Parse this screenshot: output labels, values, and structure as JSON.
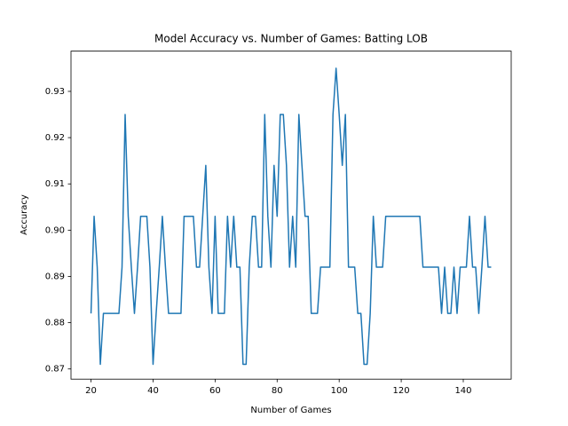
{
  "chart_data": {
    "type": "line",
    "title": "Model Accuracy vs. Number of Games: Batting LOB",
    "xlabel": "Number of Games",
    "ylabel": "Accuracy",
    "x": [
      20,
      21,
      22,
      23,
      24,
      25,
      26,
      27,
      28,
      29,
      30,
      31,
      32,
      33,
      34,
      35,
      36,
      37,
      38,
      39,
      40,
      41,
      42,
      43,
      44,
      45,
      46,
      47,
      48,
      49,
      50,
      51,
      52,
      53,
      54,
      55,
      56,
      57,
      58,
      59,
      60,
      61,
      62,
      63,
      64,
      65,
      66,
      67,
      68,
      69,
      70,
      71,
      72,
      73,
      74,
      75,
      76,
      77,
      78,
      79,
      80,
      81,
      82,
      83,
      84,
      85,
      86,
      87,
      88,
      89,
      90,
      91,
      92,
      93,
      94,
      95,
      96,
      97,
      98,
      99,
      100,
      101,
      102,
      103,
      104,
      105,
      106,
      107,
      108,
      109,
      110,
      111,
      112,
      113,
      114,
      115,
      116,
      117,
      118,
      119,
      120,
      121,
      122,
      123,
      124,
      125,
      126,
      127,
      128,
      129,
      130,
      131,
      132,
      133,
      134,
      135,
      136,
      137,
      138,
      139,
      140,
      141,
      142,
      143,
      144,
      145,
      146,
      147,
      148,
      149
    ],
    "series": [
      {
        "color": "#1f77b4",
        "values": [
          0.882,
          0.903,
          0.892,
          0.871,
          0.882,
          0.882,
          0.882,
          0.882,
          0.882,
          0.882,
          0.892,
          0.925,
          0.903,
          0.892,
          0.882,
          0.892,
          0.903,
          0.903,
          0.903,
          0.892,
          0.871,
          0.882,
          0.892,
          0.903,
          0.892,
          0.882,
          0.882,
          0.882,
          0.882,
          0.882,
          0.903,
          0.903,
          0.903,
          0.903,
          0.892,
          0.892,
          0.903,
          0.914,
          0.892,
          0.882,
          0.903,
          0.882,
          0.882,
          0.882,
          0.903,
          0.892,
          0.903,
          0.892,
          0.892,
          0.871,
          0.871,
          0.892,
          0.903,
          0.903,
          0.892,
          0.892,
          0.925,
          0.903,
          0.892,
          0.914,
          0.903,
          0.925,
          0.925,
          0.914,
          0.892,
          0.903,
          0.892,
          0.925,
          0.914,
          0.903,
          0.903,
          0.882,
          0.882,
          0.882,
          0.892,
          0.892,
          0.892,
          0.892,
          0.925,
          0.935,
          0.925,
          0.914,
          0.925,
          0.892,
          0.892,
          0.892,
          0.882,
          0.882,
          0.871,
          0.871,
          0.882,
          0.903,
          0.892,
          0.892,
          0.892,
          0.903,
          0.903,
          0.903,
          0.903,
          0.903,
          0.903,
          0.903,
          0.903,
          0.903,
          0.903,
          0.903,
          0.903,
          0.892,
          0.892,
          0.892,
          0.892,
          0.892,
          0.892,
          0.882,
          0.892,
          0.882,
          0.882,
          0.892,
          0.882,
          0.892,
          0.892,
          0.892,
          0.903,
          0.892,
          0.892,
          0.882,
          0.892,
          0.903,
          0.892,
          0.892
        ]
      }
    ],
    "xlim": [
      13.55,
      155.45
    ],
    "ylim": [
      0.8678,
      0.9387
    ],
    "xticks": [
      20,
      40,
      60,
      80,
      100,
      120,
      140
    ],
    "yticks": [
      0.87,
      0.88,
      0.89,
      {
        "value": 0.9,
        "label": "0.90"
      },
      0.91,
      0.92,
      0.93
    ]
  }
}
